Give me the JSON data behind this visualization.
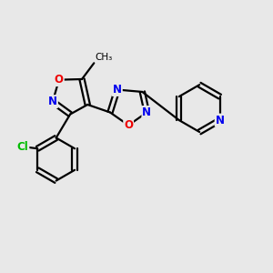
{
  "background_color": "#e8e8e8",
  "bond_color": "#000000",
  "atom_colors": {
    "N": "#0000ee",
    "O": "#ee0000",
    "Cl": "#00bb00",
    "C": "#000000"
  },
  "figsize": [
    3.0,
    3.0
  ],
  "dpi": 100
}
